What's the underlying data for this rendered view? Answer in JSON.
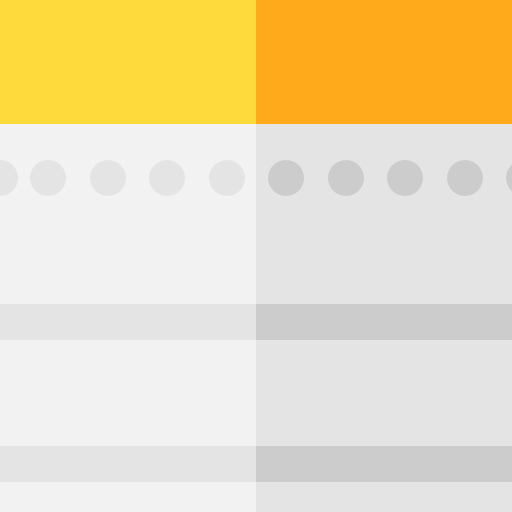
{
  "colors": {
    "header_left": "#FFDA3C",
    "header_right": "#FFAA1A",
    "body_left": "#F2F2F2",
    "body_right": "#E4E4E4",
    "stripe_left": "#E4E4E4",
    "stripe_right": "#CCCCCC",
    "dot_left": "#E4E4E4",
    "dot_right": "#CCCCCC"
  },
  "icon": "notepad-icon"
}
